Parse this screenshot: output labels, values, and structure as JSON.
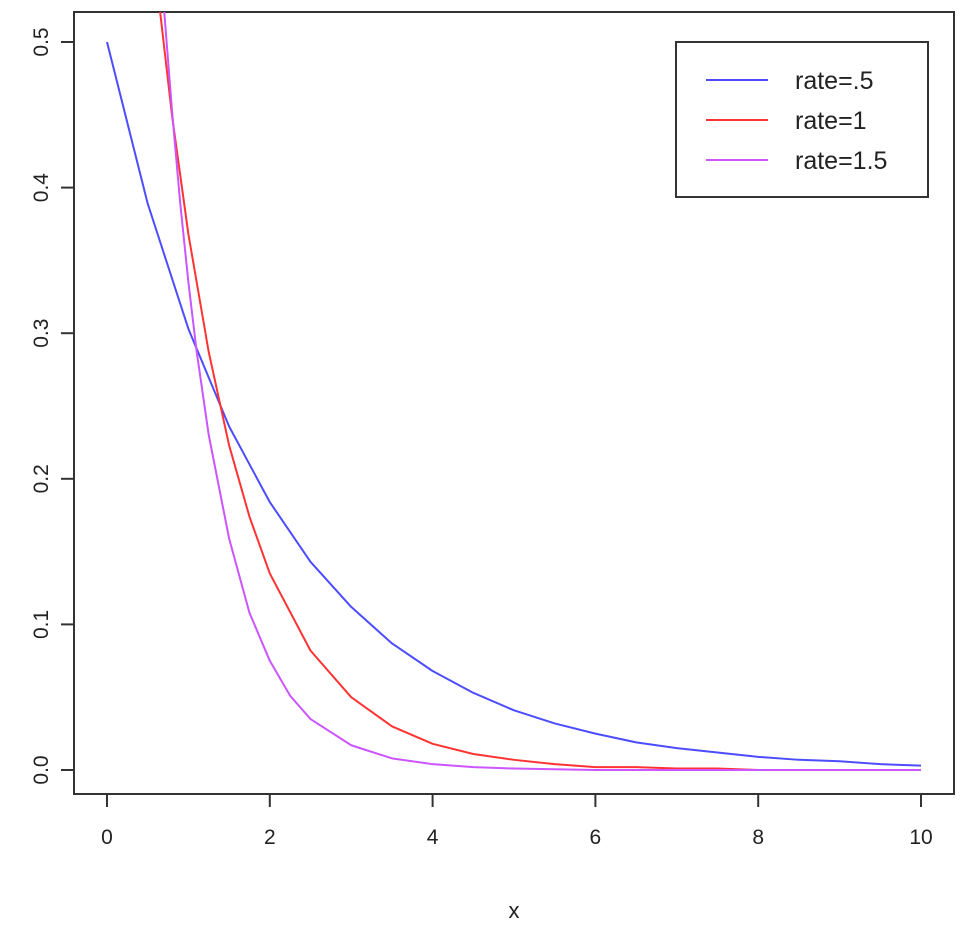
{
  "chart_data": {
    "type": "line",
    "title": "",
    "xlabel": "x",
    "ylabel": "",
    "xlim": [
      0,
      10
    ],
    "ylim": [
      0,
      0.5
    ],
    "x_ticks": [
      0,
      2,
      4,
      6,
      8,
      10
    ],
    "y_ticks": [
      0.0,
      0.1,
      0.2,
      0.3,
      0.4,
      0.5
    ],
    "x_tick_labels": [
      "0",
      "2",
      "4",
      "6",
      "8",
      "10"
    ],
    "y_tick_labels": [
      "0.0",
      "0.1",
      "0.2",
      "0.3",
      "0.4",
      "0.5"
    ],
    "grid": false,
    "legend_position": "top-right",
    "series": [
      {
        "name": "rate=.5",
        "color": "#4d4dff",
        "x": [
          0,
          0.5,
          1,
          1.5,
          2,
          2.5,
          3,
          3.5,
          4,
          4.5,
          5,
          5.5,
          6,
          6.5,
          7,
          7.5,
          8,
          8.5,
          9,
          9.5,
          10
        ],
        "values": [
          0.5,
          0.389,
          0.303,
          0.236,
          0.184,
          0.143,
          0.112,
          0.087,
          0.068,
          0.053,
          0.041,
          0.032,
          0.025,
          0.019,
          0.015,
          0.012,
          0.009,
          0.007,
          0.006,
          0.004,
          0.003
        ]
      },
      {
        "name": "rate=1",
        "color": "#ff3333",
        "x": [
          0.65,
          0.8,
          1,
          1.25,
          1.5,
          1.75,
          2,
          2.5,
          3,
          3.5,
          4,
          4.5,
          5,
          5.5,
          6,
          6.5,
          7,
          7.5,
          8,
          8.5,
          9,
          9.5,
          10
        ],
        "values": [
          0.522,
          0.449,
          0.368,
          0.287,
          0.223,
          0.174,
          0.135,
          0.082,
          0.05,
          0.03,
          0.018,
          0.011,
          0.007,
          0.004,
          0.002,
          0.002,
          0.001,
          0.001,
          0.0,
          0.0,
          0.0,
          0.0,
          0.0
        ]
      },
      {
        "name": "rate=1.5",
        "color": "#cc55ff",
        "x": [
          0.7,
          0.8,
          0.9,
          1,
          1.1,
          1.25,
          1.5,
          1.75,
          2,
          2.25,
          2.5,
          3,
          3.5,
          4,
          4.5,
          5,
          6,
          7,
          8,
          9,
          10
        ],
        "values": [
          0.523,
          0.452,
          0.389,
          0.335,
          0.288,
          0.23,
          0.159,
          0.108,
          0.075,
          0.051,
          0.035,
          0.017,
          0.008,
          0.004,
          0.002,
          0.001,
          0.0,
          0.0,
          0.0,
          0.0,
          0.0
        ]
      }
    ]
  }
}
